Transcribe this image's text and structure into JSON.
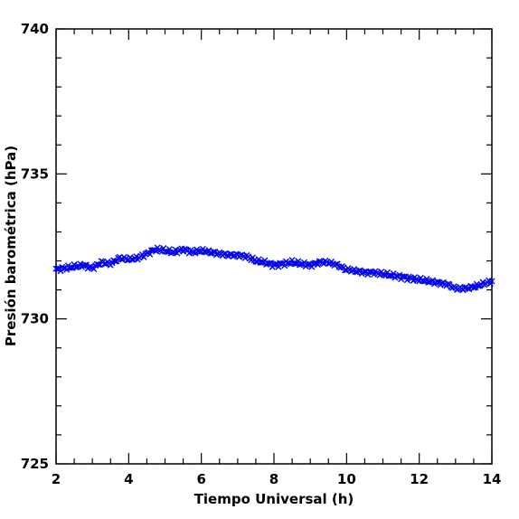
{
  "chart_data": {
    "type": "scatter",
    "title": "",
    "xlabel": "Tiempo Universal (h)",
    "ylabel": "Presión barométrica (hPa)",
    "xlim": [
      2,
      14
    ],
    "ylim": [
      725,
      740
    ],
    "x_ticks": [
      "2",
      "4",
      "6",
      "8",
      "10",
      "12",
      "14"
    ],
    "y_ticks": [
      "725",
      "730",
      "735",
      "740"
    ],
    "marker": "x",
    "grid": false,
    "series": [
      {
        "color": "#0000ee",
        "points": [
          [
            2.0,
            731.7
          ],
          [
            2.25,
            731.75
          ],
          [
            2.5,
            731.8
          ],
          [
            2.75,
            731.85
          ],
          [
            3.0,
            731.75
          ],
          [
            3.25,
            731.95
          ],
          [
            3.5,
            731.9
          ],
          [
            3.75,
            732.1
          ],
          [
            4.0,
            732.05
          ],
          [
            4.25,
            732.1
          ],
          [
            4.5,
            732.25
          ],
          [
            4.75,
            732.4
          ],
          [
            5.0,
            732.35
          ],
          [
            5.25,
            732.3
          ],
          [
            5.5,
            732.4
          ],
          [
            5.75,
            732.3
          ],
          [
            6.0,
            732.35
          ],
          [
            6.25,
            732.3
          ],
          [
            6.5,
            732.25
          ],
          [
            6.75,
            732.2
          ],
          [
            7.0,
            732.2
          ],
          [
            7.25,
            732.15
          ],
          [
            7.5,
            732.0
          ],
          [
            7.75,
            731.95
          ],
          [
            8.0,
            731.85
          ],
          [
            8.25,
            731.9
          ],
          [
            8.5,
            731.95
          ],
          [
            8.75,
            731.9
          ],
          [
            9.0,
            731.85
          ],
          [
            9.25,
            731.95
          ],
          [
            9.5,
            731.95
          ],
          [
            9.75,
            731.85
          ],
          [
            10.0,
            731.7
          ],
          [
            10.25,
            731.65
          ],
          [
            10.5,
            731.6
          ],
          [
            10.75,
            731.6
          ],
          [
            11.0,
            731.55
          ],
          [
            11.25,
            731.5
          ],
          [
            11.5,
            731.45
          ],
          [
            11.75,
            731.4
          ],
          [
            12.0,
            731.35
          ],
          [
            12.25,
            731.3
          ],
          [
            12.5,
            731.25
          ],
          [
            12.75,
            731.2
          ],
          [
            13.0,
            731.05
          ],
          [
            13.25,
            731.05
          ],
          [
            13.5,
            731.1
          ],
          [
            13.75,
            731.2
          ],
          [
            14.0,
            731.3
          ]
        ]
      }
    ]
  }
}
